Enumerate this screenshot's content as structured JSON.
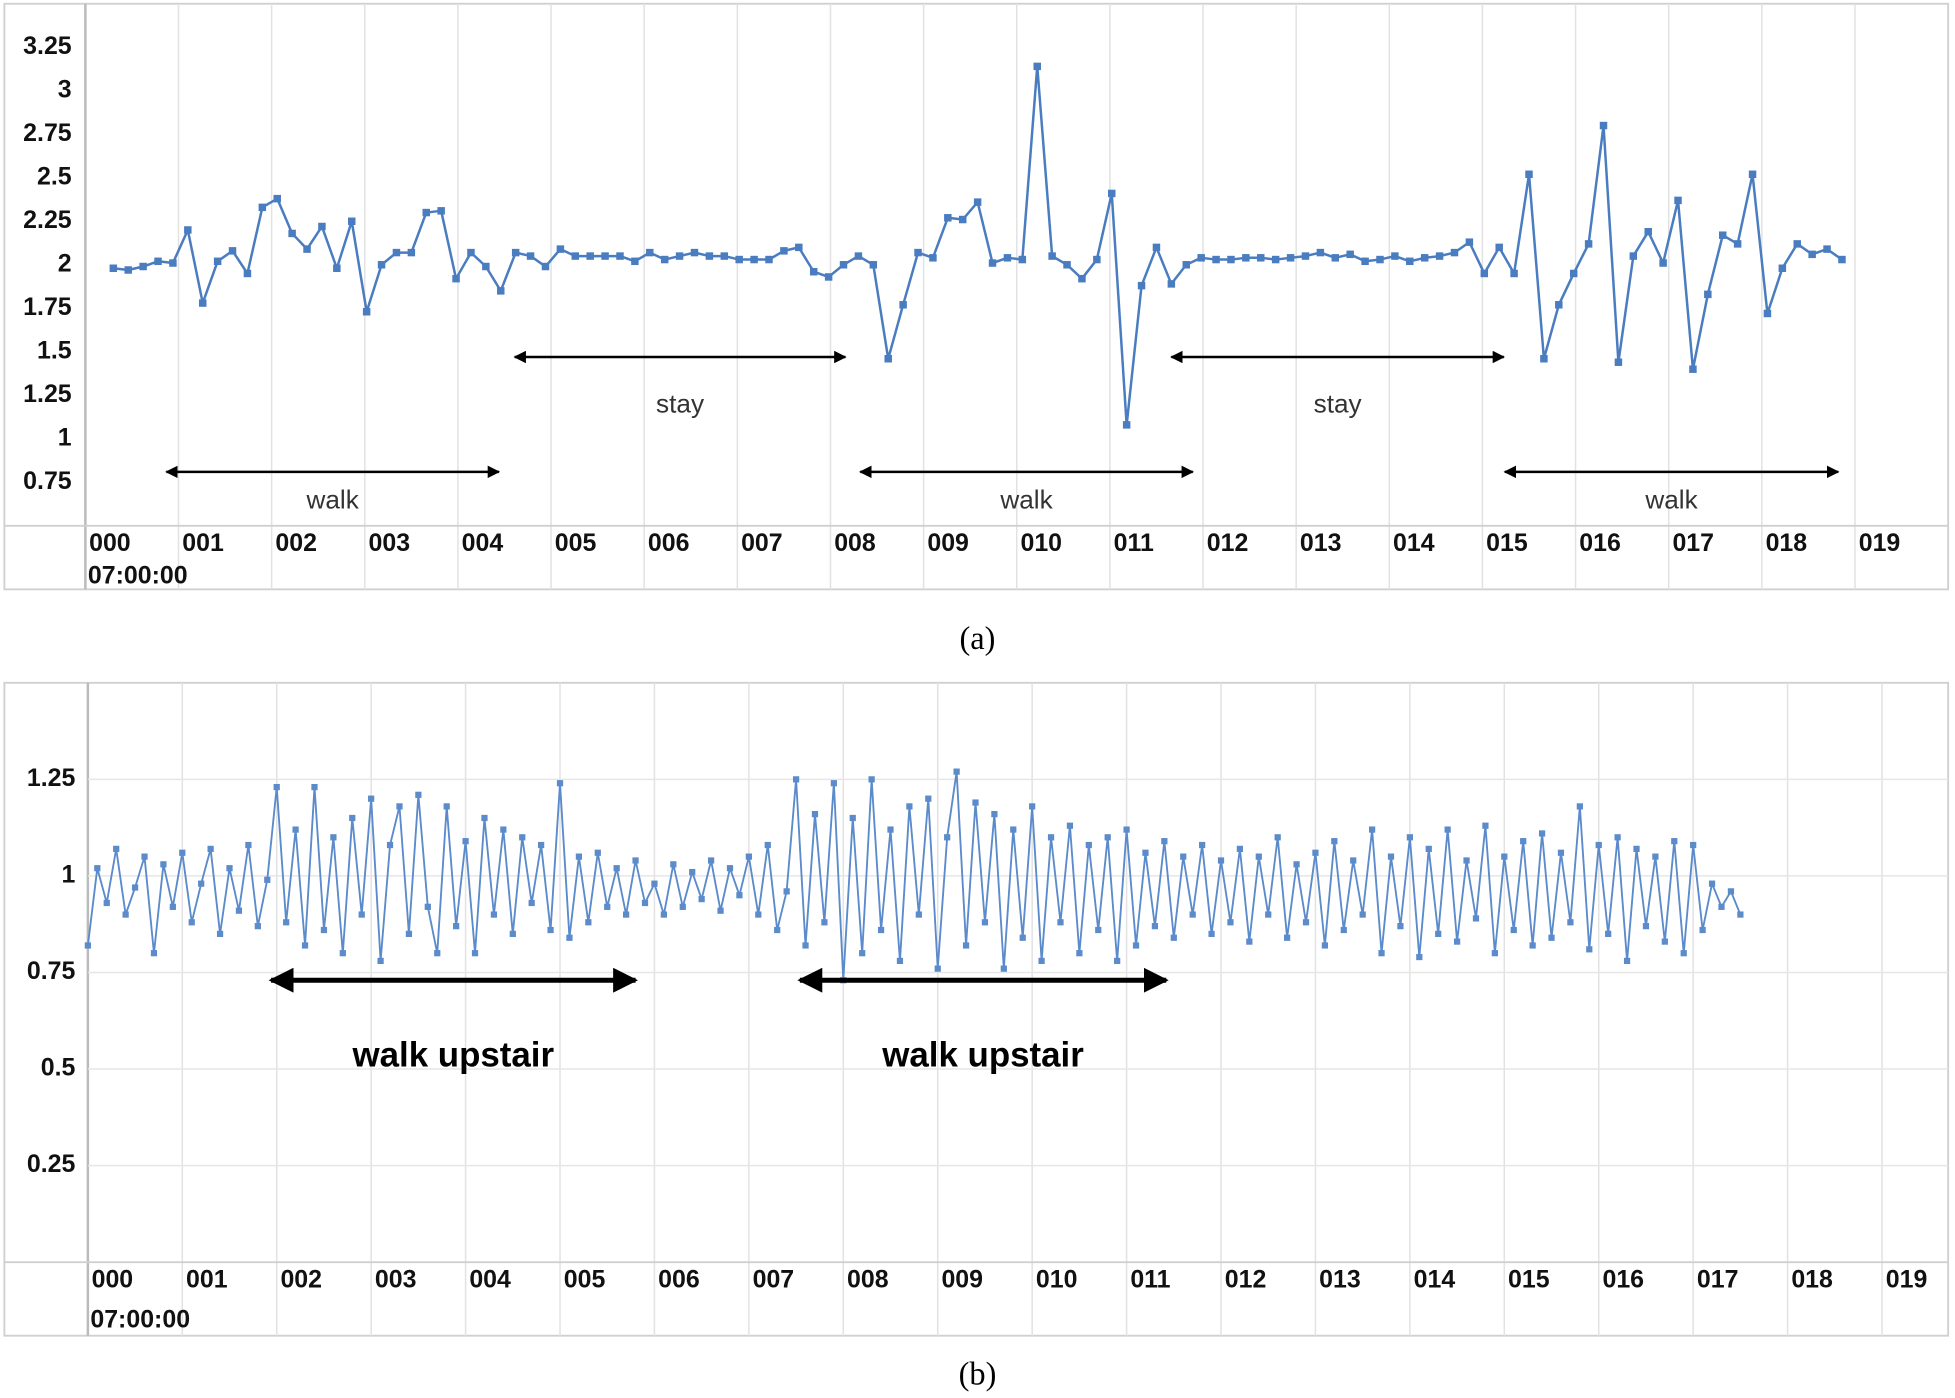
{
  "chart_data": [
    {
      "type": "line",
      "caption": "(a)",
      "color": "#4a7cc0",
      "grid": "x",
      "xlim": [
        0,
        20
      ],
      "ylim": [
        0.5,
        3.5
      ],
      "yticks": [
        0.75,
        1,
        1.25,
        1.5,
        1.75,
        2,
        2.25,
        2.5,
        2.75,
        3,
        3.25
      ],
      "xticks": [
        {
          "value": 0,
          "label": "000"
        },
        {
          "value": 1,
          "label": "001"
        },
        {
          "value": 2,
          "label": "002"
        },
        {
          "value": 3,
          "label": "003"
        },
        {
          "value": 4,
          "label": "004"
        },
        {
          "value": 5,
          "label": "005"
        },
        {
          "value": 6,
          "label": "006"
        },
        {
          "value": 7,
          "label": "007"
        },
        {
          "value": 8,
          "label": "008"
        },
        {
          "value": 9,
          "label": "009"
        },
        {
          "value": 10,
          "label": "010"
        },
        {
          "value": 11,
          "label": "011"
        },
        {
          "value": 12,
          "label": "012"
        },
        {
          "value": 13,
          "label": "013"
        },
        {
          "value": 14,
          "label": "014"
        },
        {
          "value": 15,
          "label": "015"
        },
        {
          "value": 16,
          "label": "016"
        },
        {
          "value": 17,
          "label": "017"
        },
        {
          "value": 18,
          "label": "018"
        },
        {
          "value": 19,
          "label": "019"
        }
      ],
      "x_start_label": "07:00:00",
      "x": [
        0.3,
        0.46,
        0.62,
        0.78,
        0.94,
        1.1,
        1.26,
        1.42,
        1.58,
        1.74,
        1.9,
        2.06,
        2.22,
        2.38,
        2.54,
        2.7,
        2.86,
        3.02,
        3.18,
        3.34,
        3.5,
        3.66,
        3.82,
        3.98,
        4.14,
        4.3,
        4.46,
        4.62,
        4.78,
        4.94,
        5.1,
        5.26,
        5.42,
        5.58,
        5.74,
        5.9,
        6.06,
        6.22,
        6.38,
        6.54,
        6.7,
        6.86,
        7.02,
        7.18,
        7.34,
        7.5,
        7.66,
        7.82,
        7.98,
        8.14,
        8.3,
        8.46,
        8.62,
        8.78,
        8.94,
        9.1,
        9.26,
        9.42,
        9.58,
        9.74,
        9.9,
        10.06,
        10.22,
        10.38,
        10.54,
        10.7,
        10.86,
        11.02,
        11.18,
        11.34,
        11.5,
        11.66,
        11.82,
        11.98,
        12.14,
        12.3,
        12.46,
        12.62,
        12.78,
        12.94,
        13.1,
        13.26,
        13.42,
        13.58,
        13.74,
        13.9,
        14.06,
        14.22,
        14.38,
        14.54,
        14.7,
        14.86,
        15.02,
        15.18,
        15.34,
        15.5,
        15.66,
        15.82,
        15.98,
        16.14,
        16.3,
        16.46,
        16.62,
        16.78,
        16.94,
        17.1,
        17.26,
        17.42,
        17.58,
        17.74,
        17.9,
        18.06,
        18.22,
        18.38,
        18.54,
        18.7,
        18.86
      ],
      "values": [
        1.98,
        1.97,
        1.99,
        2.02,
        2.01,
        2.2,
        1.78,
        2.02,
        2.08,
        1.95,
        2.33,
        2.38,
        2.18,
        2.09,
        2.22,
        1.98,
        2.25,
        1.73,
        2.0,
        2.07,
        2.07,
        2.3,
        2.31,
        1.92,
        2.07,
        1.99,
        1.85,
        2.07,
        2.05,
        1.99,
        2.09,
        2.05,
        2.05,
        2.05,
        2.05,
        2.02,
        2.07,
        2.03,
        2.05,
        2.07,
        2.05,
        2.05,
        2.03,
        2.03,
        2.03,
        2.08,
        2.1,
        1.96,
        1.93,
        2.0,
        2.05,
        2.0,
        1.46,
        1.77,
        2.07,
        2.04,
        2.27,
        2.26,
        2.36,
        2.01,
        2.04,
        2.03,
        3.14,
        2.05,
        2.0,
        1.92,
        2.03,
        2.41,
        1.08,
        1.88,
        2.1,
        1.89,
        2.0,
        2.04,
        2.03,
        2.03,
        2.04,
        2.04,
        2.03,
        2.04,
        2.05,
        2.07,
        2.04,
        2.06,
        2.02,
        2.03,
        2.05,
        2.02,
        2.04,
        2.05,
        2.07,
        2.13,
        1.95,
        2.1,
        1.95,
        2.52,
        1.46,
        1.77,
        1.95,
        2.12,
        2.8,
        1.44,
        2.05,
        2.19,
        2.01,
        2.37,
        1.4,
        1.83,
        2.17,
        2.12,
        2.52,
        1.72,
        1.98,
        2.12,
        2.06,
        2.09,
        2.03
      ],
      "annotations": [
        {
          "text": "walk",
          "x": [
            0.87,
            4.44
          ],
          "y": 0.81,
          "text_y": 0.64
        },
        {
          "text": "stay",
          "x": [
            4.61,
            8.16
          ],
          "y": 1.47,
          "text_y": 1.19
        },
        {
          "text": "walk",
          "x": [
            8.32,
            11.89
          ],
          "y": 0.81,
          "text_y": 0.64
        },
        {
          "text": "stay",
          "x": [
            11.66,
            15.23
          ],
          "y": 1.47,
          "text_y": 1.19
        },
        {
          "text": "walk",
          "x": [
            15.24,
            18.82
          ],
          "y": 0.81,
          "text_y": 0.64
        }
      ],
      "annotation_bold": false
    },
    {
      "type": "line",
      "caption": "(b)",
      "color": "#5b8bcb",
      "grid": "both",
      "xlim": [
        0,
        19.7
      ],
      "ylim": [
        0,
        1.5
      ],
      "yticks": [
        0.25,
        0.5,
        0.75,
        1,
        1.25
      ],
      "xticks": [
        {
          "value": 0,
          "label": "000"
        },
        {
          "value": 1,
          "label": "001"
        },
        {
          "value": 2,
          "label": "002"
        },
        {
          "value": 3,
          "label": "003"
        },
        {
          "value": 4,
          "label": "004"
        },
        {
          "value": 5,
          "label": "005"
        },
        {
          "value": 6,
          "label": "006"
        },
        {
          "value": 7,
          "label": "007"
        },
        {
          "value": 8,
          "label": "008"
        },
        {
          "value": 9,
          "label": "009"
        },
        {
          "value": 10,
          "label": "010"
        },
        {
          "value": 11,
          "label": "011"
        },
        {
          "value": 12,
          "label": "012"
        },
        {
          "value": 13,
          "label": "013"
        },
        {
          "value": 14,
          "label": "014"
        },
        {
          "value": 15,
          "label": "015"
        },
        {
          "value": 16,
          "label": "016"
        },
        {
          "value": 17,
          "label": "017"
        },
        {
          "value": 18,
          "label": "018"
        },
        {
          "value": 19,
          "label": "019"
        }
      ],
      "x_start_label": "07:00:00",
      "x": [
        0,
        0.1,
        0.2,
        0.3,
        0.4,
        0.5,
        0.6,
        0.7,
        0.8,
        0.9,
        1,
        1.1,
        1.2,
        1.3,
        1.4,
        1.5,
        1.6,
        1.7,
        1.8,
        1.9,
        2,
        2.1,
        2.2,
        2.3,
        2.4,
        2.5,
        2.6,
        2.7,
        2.8,
        2.9,
        3,
        3.1,
        3.2,
        3.3,
        3.4,
        3.5,
        3.6,
        3.7,
        3.8,
        3.9,
        4,
        4.1,
        4.2,
        4.3,
        4.4,
        4.5,
        4.6,
        4.7,
        4.8,
        4.9,
        5,
        5.1,
        5.2,
        5.3,
        5.4,
        5.5,
        5.6,
        5.7,
        5.8,
        5.9,
        6,
        6.1,
        6.2,
        6.3,
        6.4,
        6.5,
        6.6,
        6.7,
        6.8,
        6.9,
        7,
        7.1,
        7.2,
        7.3,
        7.4,
        7.5,
        7.6,
        7.7,
        7.8,
        7.9,
        8,
        8.1,
        8.2,
        8.3,
        8.4,
        8.5,
        8.6,
        8.7,
        8.8,
        8.9,
        9,
        9.1,
        9.2,
        9.3,
        9.4,
        9.5,
        9.6,
        9.7,
        9.8,
        9.9,
        10,
        10.1,
        10.2,
        10.3,
        10.4,
        10.5,
        10.6,
        10.7,
        10.8,
        10.9,
        11,
        11.1,
        11.2,
        11.3,
        11.4,
        11.5,
        11.6,
        11.7,
        11.8,
        11.9,
        12,
        12.1,
        12.2,
        12.3,
        12.4,
        12.5,
        12.6,
        12.7,
        12.8,
        12.9,
        13,
        13.1,
        13.2,
        13.3,
        13.4,
        13.5,
        13.6,
        13.7,
        13.8,
        13.9,
        14,
        14.1,
        14.2,
        14.3,
        14.4,
        14.5,
        14.6,
        14.7,
        14.8,
        14.9,
        15,
        15.1,
        15.2,
        15.3,
        15.4,
        15.5,
        15.6,
        15.7,
        15.8,
        15.9,
        16,
        16.1,
        16.2,
        16.3,
        16.4,
        16.5,
        16.6,
        16.7,
        16.8,
        16.9,
        17,
        17.1,
        17.2,
        17.3,
        17.4,
        17.5
      ],
      "values": [
        0.82,
        1.02,
        0.93,
        1.07,
        0.9,
        0.97,
        1.05,
        0.8,
        1.03,
        0.92,
        1.06,
        0.88,
        0.98,
        1.07,
        0.85,
        1.02,
        0.91,
        1.08,
        0.87,
        0.99,
        1.23,
        0.88,
        1.12,
        0.82,
        1.23,
        0.86,
        1.1,
        0.8,
        1.15,
        0.9,
        1.2,
        0.78,
        1.08,
        1.18,
        0.85,
        1.21,
        0.92,
        0.8,
        1.18,
        0.87,
        1.09,
        0.8,
        1.15,
        0.9,
        1.12,
        0.85,
        1.1,
        0.93,
        1.08,
        0.86,
        1.24,
        0.84,
        1.05,
        0.88,
        1.06,
        0.92,
        1.02,
        0.9,
        1.04,
        0.93,
        0.98,
        0.9,
        1.03,
        0.92,
        1.01,
        0.94,
        1.04,
        0.91,
        1.02,
        0.95,
        1.05,
        0.9,
        1.08,
        0.86,
        0.96,
        1.25,
        0.82,
        1.16,
        0.88,
        1.24,
        0.73,
        1.15,
        0.8,
        1.25,
        0.86,
        1.12,
        0.78,
        1.18,
        0.9,
        1.2,
        0.76,
        1.1,
        1.27,
        0.82,
        1.19,
        0.88,
        1.16,
        0.76,
        1.12,
        0.84,
        1.18,
        0.78,
        1.1,
        0.88,
        1.13,
        0.8,
        1.08,
        0.86,
        1.1,
        0.78,
        1.12,
        0.82,
        1.06,
        0.87,
        1.09,
        0.84,
        1.05,
        0.9,
        1.08,
        0.85,
        1.04,
        0.88,
        1.07,
        0.83,
        1.05,
        0.9,
        1.1,
        0.84,
        1.03,
        0.88,
        1.06,
        0.82,
        1.09,
        0.86,
        1.04,
        0.9,
        1.12,
        0.8,
        1.05,
        0.87,
        1.1,
        0.79,
        1.07,
        0.85,
        1.12,
        0.83,
        1.04,
        0.89,
        1.13,
        0.8,
        1.05,
        0.86,
        1.09,
        0.82,
        1.11,
        0.84,
        1.06,
        0.88,
        1.18,
        0.81,
        1.08,
        0.85,
        1.1,
        0.78,
        1.07,
        0.87,
        1.05,
        0.83,
        1.09,
        0.8,
        1.08,
        0.86,
        0.98,
        0.92,
        0.96,
        0.9
      ],
      "annotations": [
        {
          "text": "walk upstair",
          "x": [
            1.94,
            5.8
          ],
          "y": 0.73,
          "text_y": 0.53
        },
        {
          "text": "walk upstair",
          "x": [
            7.54,
            11.42
          ],
          "y": 0.73,
          "text_y": 0.53
        }
      ],
      "annotation_bold": true
    }
  ]
}
